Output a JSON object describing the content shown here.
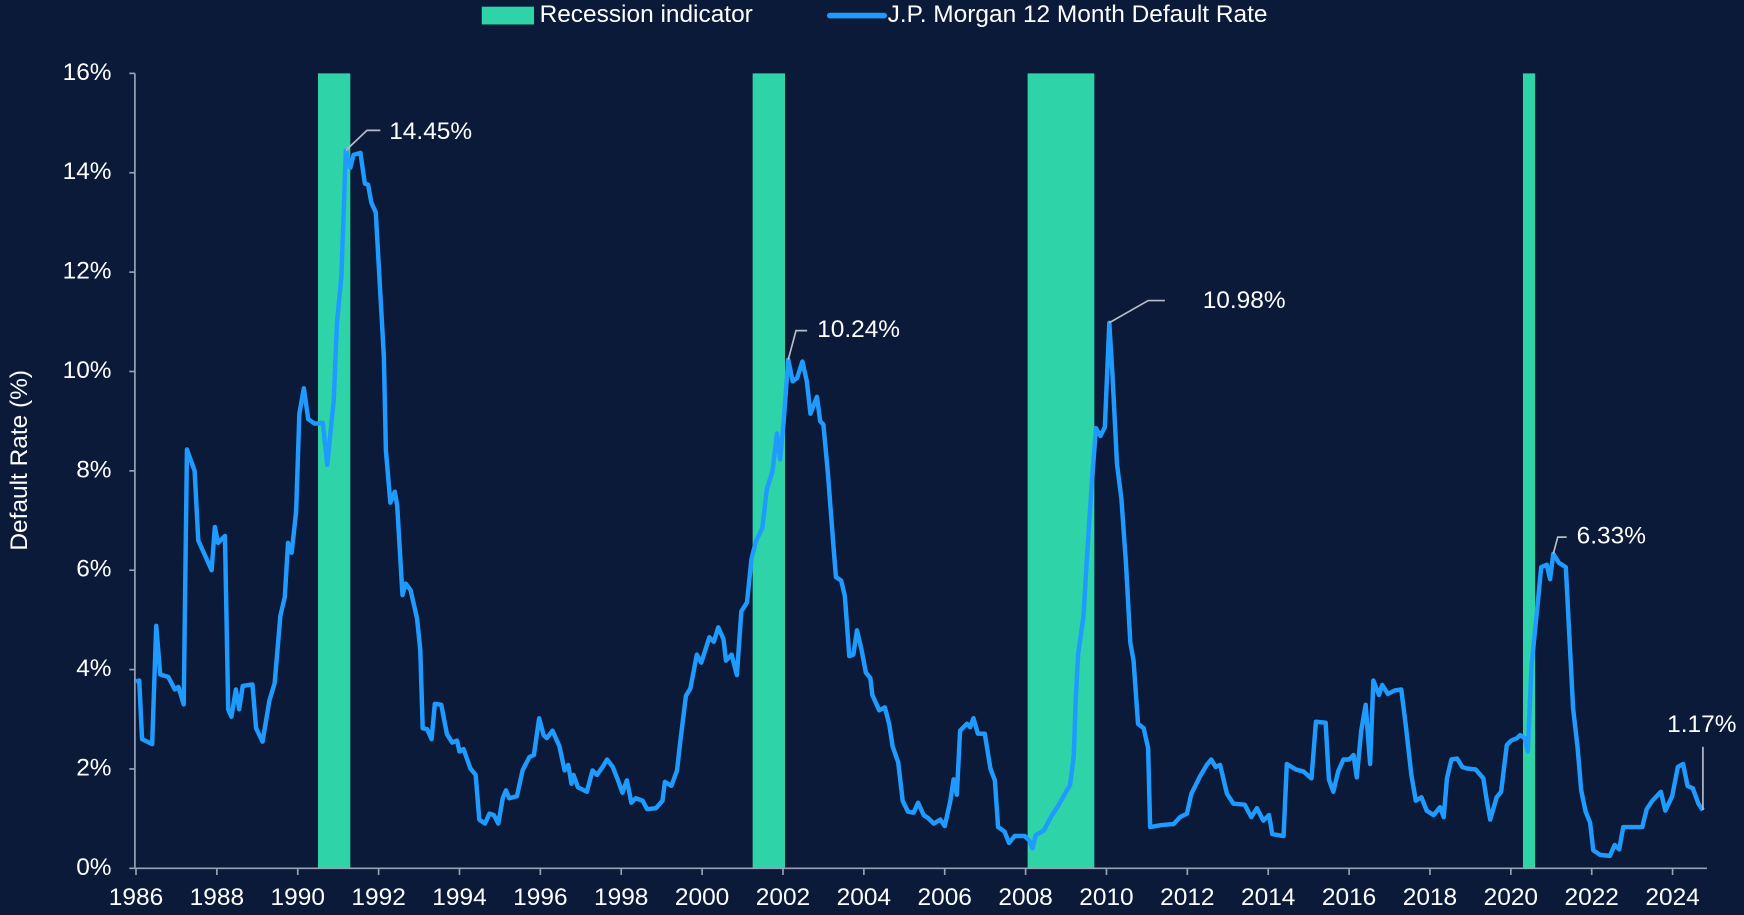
{
  "chart_data": {
    "type": "line",
    "y_label": "Default Rate (%)",
    "xlim": [
      1986,
      2024.85
    ],
    "xticks": [
      1986,
      1988,
      1990,
      1992,
      1994,
      1996,
      1998,
      2000,
      2002,
      2004,
      2006,
      2008,
      2010,
      2012,
      2014,
      2016,
      2018,
      2020,
      2022,
      2024
    ],
    "ylim": [
      0,
      16
    ],
    "yticks": [
      {
        "value": 0,
        "label": "0%"
      },
      {
        "value": 2,
        "label": "2%"
      },
      {
        "value": 4,
        "label": "4%"
      },
      {
        "value": 6,
        "label": "6%"
      },
      {
        "value": 8,
        "label": "8%"
      },
      {
        "value": 10,
        "label": "10%"
      },
      {
        "value": 12,
        "label": "12%"
      },
      {
        "value": 14,
        "label": "14%"
      },
      {
        "value": 16,
        "label": "16%"
      }
    ],
    "series": [
      {
        "name": "Recession indicator",
        "type": "band",
        "color": "#2ed3a8",
        "spans": [
          [
            1990.5,
            1991.3
          ],
          [
            2001.25,
            2002.05
          ],
          [
            2008.05,
            2009.7
          ],
          [
            2020.3,
            2020.6
          ]
        ]
      },
      {
        "name": "J.P. Morgan 12 Month Default Rate",
        "type": "line",
        "color": "#1f9bff",
        "x": [
          1986.0,
          1986.08,
          1986.15,
          1986.4,
          1986.5,
          1986.6,
          1986.8,
          1986.96,
          1987.05,
          1987.18,
          1987.26,
          1987.45,
          1987.54,
          1987.87,
          1987.95,
          1988.03,
          1988.2,
          1988.28,
          1988.36,
          1988.47,
          1988.55,
          1988.64,
          1988.88,
          1988.97,
          1989.13,
          1989.3,
          1989.43,
          1989.57,
          1989.68,
          1989.76,
          1989.85,
          1989.96,
          1990.04,
          1990.15,
          1990.26,
          1990.42,
          1990.62,
          1990.73,
          1990.89,
          1990.97,
          1991.08,
          1991.19,
          1991.3,
          1991.38,
          1991.55,
          1991.66,
          1991.74,
          1991.82,
          1991.93,
          1992.13,
          1992.18,
          1992.29,
          1992.4,
          1992.46,
          1992.59,
          1992.67,
          1992.79,
          1992.95,
          1993.03,
          1993.09,
          1993.2,
          1993.31,
          1993.39,
          1993.55,
          1993.69,
          1993.82,
          1993.94,
          1994.0,
          1994.1,
          1994.27,
          1994.4,
          1994.49,
          1994.63,
          1994.74,
          1994.85,
          1994.96,
          1995.07,
          1995.15,
          1995.23,
          1995.42,
          1995.56,
          1995.73,
          1995.84,
          1995.97,
          1996.08,
          1996.16,
          1996.3,
          1996.47,
          1996.6,
          1996.69,
          1996.77,
          1996.82,
          1996.93,
          1997.15,
          1997.29,
          1997.4,
          1997.54,
          1997.65,
          1997.79,
          1997.92,
          1998.03,
          1998.14,
          1998.25,
          1998.36,
          1998.53,
          1998.64,
          1998.86,
          1999.02,
          1999.08,
          1999.24,
          1999.38,
          1999.46,
          1999.6,
          1999.71,
          1999.87,
          1999.98,
          2000.18,
          2000.29,
          2000.4,
          2000.53,
          2000.59,
          2000.73,
          2000.86,
          2000.97,
          2001.11,
          2001.22,
          2001.33,
          2001.49,
          2001.6,
          2001.74,
          2001.85,
          2001.93,
          2002.02,
          2002.13,
          2002.24,
          2002.35,
          2002.48,
          2002.59,
          2002.68,
          2002.84,
          2002.92,
          2003.0,
          2003.11,
          2003.25,
          2003.31,
          2003.44,
          2003.53,
          2003.64,
          2003.74,
          2003.83,
          2003.94,
          2004.05,
          2004.16,
          2004.21,
          2004.38,
          2004.52,
          2004.63,
          2004.71,
          2004.85,
          2004.96,
          2005.09,
          2005.23,
          2005.34,
          2005.48,
          2005.59,
          2005.73,
          2005.89,
          2006.0,
          2006.14,
          2006.22,
          2006.3,
          2006.38,
          2006.55,
          2006.63,
          2006.71,
          2006.82,
          2006.99,
          2007.13,
          2007.24,
          2007.32,
          2007.48,
          2007.59,
          2007.73,
          2007.98,
          2008.09,
          2008.17,
          2008.25,
          2008.45,
          2008.64,
          2008.8,
          2008.94,
          2009.1,
          2009.19,
          2009.24,
          2009.3,
          2009.43,
          2009.54,
          2009.63,
          2009.74,
          2009.85,
          2009.96,
          2010.07,
          2010.15,
          2010.26,
          2010.37,
          2010.48,
          2010.59,
          2010.67,
          2010.78,
          2010.92,
          2011.03,
          2011.08,
          2011.36,
          2011.66,
          2011.82,
          2011.99,
          2012.1,
          2012.32,
          2012.48,
          2012.59,
          2012.7,
          2012.81,
          2012.98,
          2013.14,
          2013.42,
          2013.58,
          2013.72,
          2013.88,
          2014.02,
          2014.1,
          2014.38,
          2014.46,
          2014.68,
          2014.87,
          2015.07,
          2015.18,
          2015.42,
          2015.5,
          2015.61,
          2015.73,
          2015.86,
          2016.0,
          2016.11,
          2016.19,
          2016.3,
          2016.41,
          2016.52,
          2016.6,
          2016.74,
          2016.82,
          2016.96,
          2017.13,
          2017.29,
          2017.4,
          2017.54,
          2017.65,
          2017.79,
          2017.92,
          2018.09,
          2018.25,
          2018.34,
          2018.42,
          2018.53,
          2018.67,
          2018.8,
          2018.91,
          2019.13,
          2019.32,
          2019.41,
          2019.49,
          2019.65,
          2019.76,
          2019.9,
          2020.01,
          2020.15,
          2020.23,
          2020.34,
          2020.42,
          2020.51,
          2020.59,
          2020.67,
          2020.75,
          2020.89,
          2020.97,
          2021.05,
          2021.19,
          2021.36,
          2021.44,
          2021.54,
          2021.65,
          2021.74,
          2021.85,
          2021.96,
          2022.04,
          2022.21,
          2022.45,
          2022.57,
          2022.68,
          2022.78,
          2023.09,
          2023.25,
          2023.36,
          2023.5,
          2023.71,
          2023.82,
          2023.99,
          2024.13,
          2024.26,
          2024.37,
          2024.5,
          2024.64,
          2024.75
        ],
        "values": [
          3.76,
          3.78,
          2.6,
          2.5,
          4.88,
          3.9,
          3.85,
          3.6,
          3.65,
          3.3,
          8.43,
          8.0,
          6.6,
          6.0,
          6.87,
          6.55,
          6.69,
          3.2,
          3.05,
          3.6,
          3.2,
          3.67,
          3.7,
          2.82,
          2.55,
          3.38,
          3.73,
          5.08,
          5.46,
          6.55,
          6.35,
          7.18,
          9.15,
          9.66,
          9.04,
          8.95,
          8.97,
          8.12,
          9.42,
          10.98,
          11.92,
          14.45,
          14.1,
          14.36,
          14.4,
          13.78,
          13.76,
          13.4,
          13.2,
          10.3,
          8.41,
          7.36,
          7.58,
          7.3,
          5.5,
          5.73,
          5.6,
          5.03,
          4.4,
          2.82,
          2.8,
          2.6,
          3.31,
          3.29,
          2.7,
          2.53,
          2.57,
          2.35,
          2.4,
          2.01,
          1.88,
          0.98,
          0.9,
          1.1,
          1.07,
          0.9,
          1.41,
          1.57,
          1.41,
          1.45,
          1.97,
          2.24,
          2.28,
          3.02,
          2.68,
          2.62,
          2.77,
          2.46,
          1.97,
          2.08,
          1.7,
          1.88,
          1.63,
          1.54,
          1.97,
          1.88,
          2.04,
          2.19,
          2.04,
          1.77,
          1.52,
          1.77,
          1.32,
          1.41,
          1.36,
          1.19,
          1.21,
          1.36,
          1.74,
          1.66,
          1.97,
          2.55,
          3.47,
          3.62,
          4.3,
          4.14,
          4.65,
          4.56,
          4.85,
          4.61,
          4.18,
          4.3,
          3.89,
          5.17,
          5.35,
          6.22,
          6.58,
          6.85,
          7.63,
          7.99,
          8.75,
          8.23,
          9.02,
          10.24,
          9.8,
          9.87,
          10.2,
          9.8,
          9.15,
          9.49,
          9.0,
          8.93,
          7.96,
          6.47,
          5.86,
          5.79,
          5.48,
          4.27,
          4.3,
          4.79,
          4.41,
          3.94,
          3.83,
          3.49,
          3.18,
          3.24,
          2.89,
          2.46,
          2.13,
          1.36,
          1.14,
          1.12,
          1.32,
          1.07,
          1.01,
          0.9,
          0.98,
          0.85,
          1.36,
          1.79,
          1.48,
          2.77,
          2.91,
          2.84,
          3.02,
          2.71,
          2.71,
          2.01,
          1.77,
          0.83,
          0.74,
          0.51,
          0.65,
          0.65,
          0.56,
          0.4,
          0.67,
          0.76,
          1.05,
          1.25,
          1.45,
          1.68,
          2.26,
          3.4,
          4.32,
          5.06,
          6.55,
          7.67,
          8.86,
          8.7,
          8.88,
          10.98,
          9.91,
          8.14,
          7.43,
          6.17,
          4.54,
          4.18,
          2.91,
          2.82,
          2.42,
          0.83,
          0.87,
          0.89,
          1.03,
          1.1,
          1.5,
          1.86,
          2.08,
          2.19,
          2.04,
          2.08,
          1.5,
          1.3,
          1.28,
          1.03,
          1.21,
          0.96,
          1.07,
          0.69,
          0.65,
          2.1,
          1.99,
          1.95,
          1.81,
          2.95,
          2.93,
          1.79,
          1.54,
          1.95,
          2.19,
          2.19,
          2.28,
          1.83,
          2.77,
          3.29,
          2.1,
          3.78,
          3.49,
          3.69,
          3.51,
          3.58,
          3.6,
          2.89,
          1.88,
          1.36,
          1.43,
          1.16,
          1.07,
          1.23,
          1.03,
          1.81,
          2.19,
          2.21,
          2.04,
          2.01,
          1.99,
          1.81,
          1.34,
          0.98,
          1.43,
          1.54,
          2.48,
          2.57,
          2.62,
          2.68,
          2.62,
          2.35,
          4.05,
          4.72,
          5.37,
          6.06,
          6.11,
          5.82,
          6.33,
          6.15,
          6.06,
          4.79,
          3.22,
          2.44,
          1.57,
          1.14,
          0.92,
          0.36,
          0.27,
          0.25,
          0.47,
          0.38,
          0.83,
          0.83,
          0.83,
          1.19,
          1.36,
          1.54,
          1.16,
          1.45,
          2.04,
          2.1,
          1.66,
          1.61,
          1.3,
          1.17
        ]
      }
    ],
    "annotations": [
      {
        "x": 1991.19,
        "value": 14.45,
        "label": "14.45%"
      },
      {
        "x": 2002.13,
        "value": 10.24,
        "label": "10.24%"
      },
      {
        "x": 2010.07,
        "value": 10.98,
        "label": "10.98%"
      },
      {
        "x": 2021.05,
        "value": 6.33,
        "label": "6.33%"
      },
      {
        "x": 2024.75,
        "value": 1.17,
        "label": "1.17%"
      }
    ]
  }
}
